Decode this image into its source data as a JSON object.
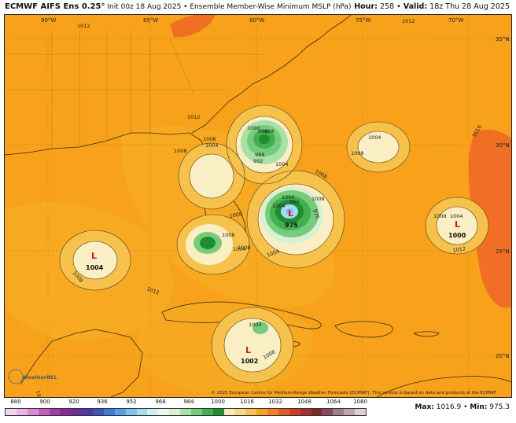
{
  "header": {
    "title": "ECMWF AIFS Ens 0.25°",
    "subtitle": "Init 00z 18 Aug 2025 • Ensemble Member-Wise Minimum MSLP (hPa)",
    "hour_label": "Hour:",
    "hour_value": "258",
    "valid_label": "Valid:",
    "valid_value": "18z Thu 28 Aug 2025"
  },
  "map": {
    "longitude_labels": [
      "90°W",
      "85°W",
      "80°W",
      "75°W",
      "70°W"
    ],
    "latitude_labels": [
      "35°N",
      "30°N",
      "25°N",
      "20°N"
    ],
    "contour_labels": [
      "1012",
      "1012",
      "1012",
      "1016",
      "1012",
      "1008",
      "1008",
      "1008",
      "1004",
      "1004",
      "1004",
      "1004",
      "1004",
      "1004",
      "1008",
      "1008",
      "1008",
      "1008",
      "1012",
      "1000",
      "996",
      "984",
      "988",
      "992",
      "980",
      "976",
      "1008",
      "1008",
      "1004",
      "1012",
      "1008",
      "1000",
      "1004",
      "1008"
    ],
    "lows": [
      {
        "symbol": "L",
        "value": "975"
      },
      {
        "symbol": "L",
        "value": "1004"
      },
      {
        "symbol": "L",
        "value": "1000"
      },
      {
        "symbol": "L",
        "value": "1002"
      }
    ],
    "credit": "© 2025 European Centre for Medium-Range Weather Forecasts (ECMWF). This service is based on data and products of the ECMWF.",
    "logo_text": "WeatherBELL",
    "colors": {
      "ocean_orange": "#f7a21a",
      "land_orange": "#f59f1b",
      "deep_orange": "#f06f24",
      "pale": "#f5e3a0",
      "cream": "#f9eec4",
      "green_light": "#9be3a0",
      "green_mid": "#4ec25a",
      "green_dark": "#1e8f2e",
      "low_marker": "#c0202a"
    }
  },
  "colorbar": {
    "ticks": [
      "880",
      "900",
      "920",
      "936",
      "952",
      "968",
      "984",
      "1000",
      "1016",
      "1032",
      "1048",
      "1064",
      "1080"
    ],
    "colors": [
      "#f4d6f2",
      "#eab6ea",
      "#d88ad8",
      "#c35ec3",
      "#a93aa9",
      "#8a2a9a",
      "#6a2e9e",
      "#4c3aa8",
      "#3a56c0",
      "#3f7bd8",
      "#57a2e6",
      "#7cc3ef",
      "#a6dcf2",
      "#cfeef6",
      "#e9f7f3",
      "#d8f0d4",
      "#a9e0a6",
      "#76cb7c",
      "#43b04f",
      "#1f8e2e",
      "#f7ecb8",
      "#f5da8a",
      "#f6c24c",
      "#f6a51f",
      "#f0802a",
      "#e35a2a",
      "#cc3b2c",
      "#a82f2c",
      "#7e2a2a",
      "#8a4a5a",
      "#a57a8a",
      "#c0a5b0",
      "#ddd0d5"
    ],
    "max_label": "Max:",
    "max_value": "1016.9",
    "min_label": "Min:",
    "min_value": "975.3"
  }
}
